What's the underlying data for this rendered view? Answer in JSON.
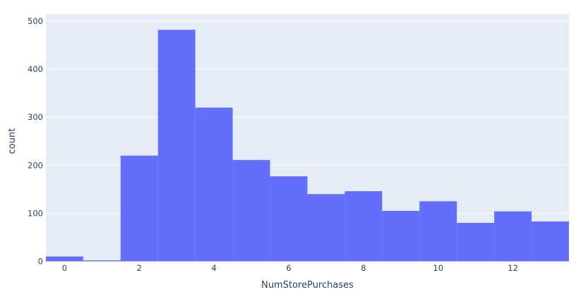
{
  "chart_data": {
    "type": "bar",
    "subtype": "histogram",
    "xlabel": "NumStorePurchases",
    "ylabel": "count",
    "x": [
      0,
      1,
      2,
      3,
      4,
      5,
      6,
      7,
      8,
      9,
      10,
      11,
      12,
      13
    ],
    "values": [
      10,
      2,
      220,
      482,
      320,
      211,
      177,
      140,
      146,
      105,
      125,
      80,
      104,
      83
    ],
    "bin_width": 1,
    "xlim": [
      -0.5,
      13.5
    ],
    "ylim": [
      0,
      500
    ],
    "x_ticks": [
      0,
      2,
      4,
      6,
      8,
      10,
      12
    ],
    "y_ticks": [
      0,
      100,
      200,
      300,
      400,
      500
    ],
    "grid": true,
    "bar_color": "#636efa",
    "plot_bg": "#e5ecf6"
  }
}
